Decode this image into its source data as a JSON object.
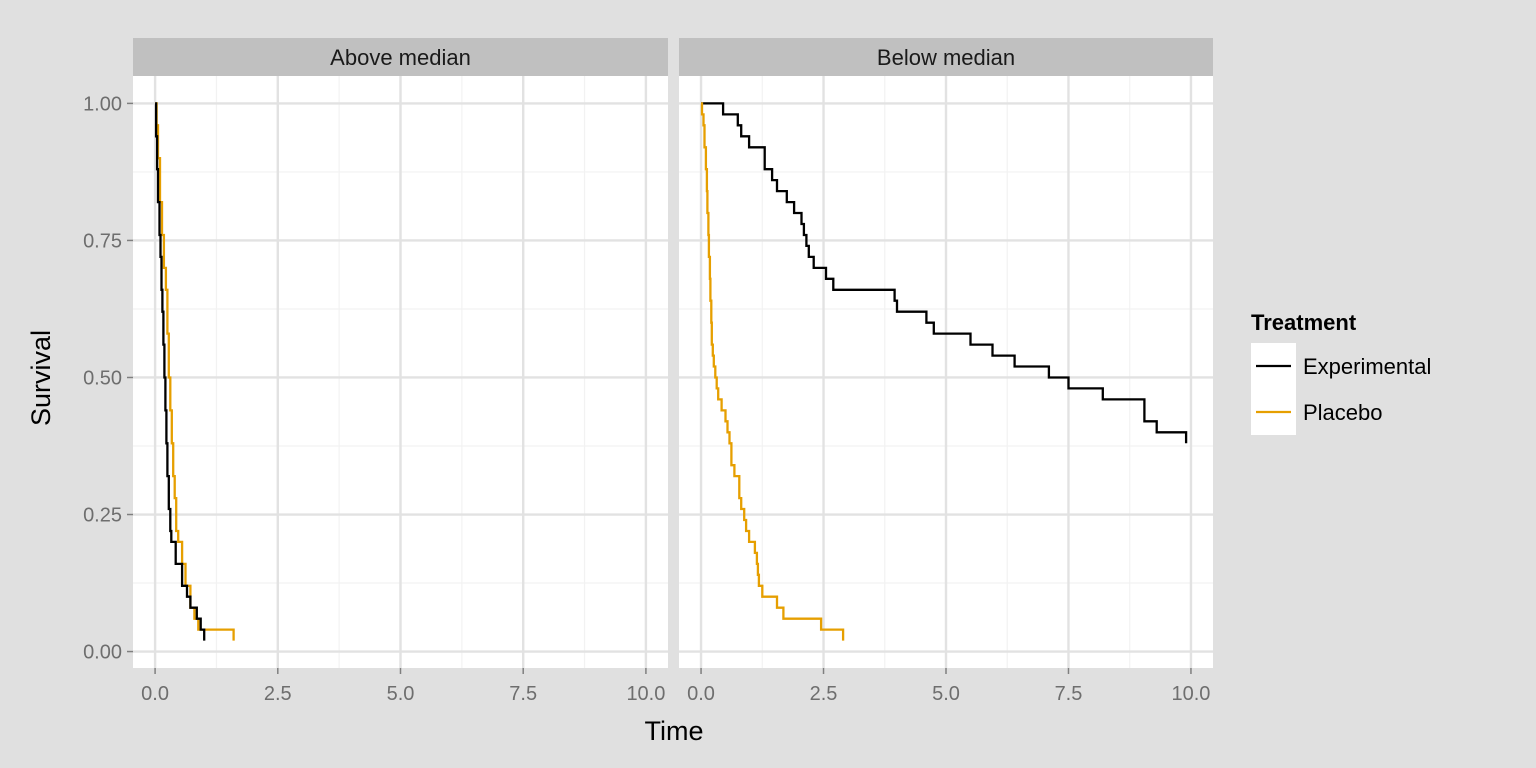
{
  "chart_data": {
    "type": "line",
    "subtype": "step (Kaplan-Meier survival curves), faceted",
    "xlabel": "Time",
    "ylabel": "Survival",
    "xlim": [
      -0.45,
      10.45
    ],
    "ylim": [
      -0.03,
      1.05
    ],
    "x_ticks": [
      0,
      2.5,
      5,
      7.5,
      10
    ],
    "x_tick_labels": [
      "0.0",
      "2.5",
      "5.0",
      "7.5",
      "10.0"
    ],
    "y_ticks": [
      0,
      0.25,
      0.5,
      0.75,
      1
    ],
    "y_tick_labels": [
      "0.00",
      "0.25",
      "0.50",
      "0.75",
      "1.00"
    ],
    "grid": true,
    "legend": {
      "title": "Treatment",
      "position": "right",
      "entries": [
        {
          "name": "Experimental",
          "color": "#000000"
        },
        {
          "name": "Placebo",
          "color": "#e69f00"
        }
      ]
    },
    "facets": [
      {
        "label": "Above median",
        "series": [
          {
            "name": "Experimental",
            "color": "#000000",
            "points": [
              [
                0,
                1.0
              ],
              [
                0.02,
                0.94
              ],
              [
                0.04,
                0.88
              ],
              [
                0.06,
                0.82
              ],
              [
                0.09,
                0.76
              ],
              [
                0.11,
                0.72
              ],
              [
                0.13,
                0.66
              ],
              [
                0.15,
                0.62
              ],
              [
                0.17,
                0.56
              ],
              [
                0.19,
                0.5
              ],
              [
                0.21,
                0.44
              ],
              [
                0.23,
                0.38
              ],
              [
                0.25,
                0.32
              ],
              [
                0.28,
                0.26
              ],
              [
                0.31,
                0.22
              ],
              [
                0.33,
                0.2
              ],
              [
                0.42,
                0.16
              ],
              [
                0.55,
                0.12
              ],
              [
                0.65,
                0.1
              ],
              [
                0.72,
                0.08
              ],
              [
                0.85,
                0.06
              ],
              [
                0.93,
                0.04
              ],
              [
                1.0,
                0.02
              ]
            ]
          },
          {
            "name": "Placebo",
            "color": "#e69f00",
            "points": [
              [
                0,
                1.0
              ],
              [
                0.03,
                0.96
              ],
              [
                0.06,
                0.9
              ],
              [
                0.1,
                0.82
              ],
              [
                0.14,
                0.76
              ],
              [
                0.18,
                0.7
              ],
              [
                0.22,
                0.66
              ],
              [
                0.25,
                0.58
              ],
              [
                0.28,
                0.5
              ],
              [
                0.31,
                0.44
              ],
              [
                0.34,
                0.38
              ],
              [
                0.37,
                0.32
              ],
              [
                0.4,
                0.28
              ],
              [
                0.43,
                0.22
              ],
              [
                0.47,
                0.2
              ],
              [
                0.55,
                0.16
              ],
              [
                0.62,
                0.12
              ],
              [
                0.72,
                0.08
              ],
              [
                0.8,
                0.06
              ],
              [
                0.88,
                0.04
              ],
              [
                1.6,
                0.02
              ]
            ]
          }
        ]
      },
      {
        "label": "Below median",
        "series": [
          {
            "name": "Experimental",
            "color": "#000000",
            "points": [
              [
                0,
                1.0
              ],
              [
                0.45,
                0.98
              ],
              [
                0.75,
                0.96
              ],
              [
                0.82,
                0.94
              ],
              [
                0.98,
                0.92
              ],
              [
                1.3,
                0.88
              ],
              [
                1.45,
                0.86
              ],
              [
                1.55,
                0.84
              ],
              [
                1.75,
                0.82
              ],
              [
                1.9,
                0.8
              ],
              [
                2.05,
                0.78
              ],
              [
                2.1,
                0.76
              ],
              [
                2.15,
                0.74
              ],
              [
                2.2,
                0.72
              ],
              [
                2.3,
                0.7
              ],
              [
                2.55,
                0.68
              ],
              [
                2.7,
                0.66
              ],
              [
                3.95,
                0.64
              ],
              [
                4.0,
                0.62
              ],
              [
                4.6,
                0.6
              ],
              [
                4.75,
                0.58
              ],
              [
                5.5,
                0.56
              ],
              [
                5.95,
                0.54
              ],
              [
                6.4,
                0.52
              ],
              [
                7.1,
                0.5
              ],
              [
                7.5,
                0.48
              ],
              [
                8.2,
                0.46
              ],
              [
                9.05,
                0.42
              ],
              [
                9.3,
                0.4
              ],
              [
                9.9,
                0.38
              ]
            ]
          },
          {
            "name": "Placebo",
            "color": "#e69f00",
            "points": [
              [
                0,
                1.0
              ],
              [
                0.02,
                0.98
              ],
              [
                0.05,
                0.96
              ],
              [
                0.07,
                0.92
              ],
              [
                0.1,
                0.88
              ],
              [
                0.12,
                0.84
              ],
              [
                0.13,
                0.8
              ],
              [
                0.15,
                0.76
              ],
              [
                0.16,
                0.72
              ],
              [
                0.18,
                0.68
              ],
              [
                0.19,
                0.64
              ],
              [
                0.21,
                0.6
              ],
              [
                0.22,
                0.56
              ],
              [
                0.24,
                0.54
              ],
              [
                0.26,
                0.52
              ],
              [
                0.29,
                0.5
              ],
              [
                0.32,
                0.48
              ],
              [
                0.35,
                0.46
              ],
              [
                0.42,
                0.44
              ],
              [
                0.5,
                0.42
              ],
              [
                0.54,
                0.4
              ],
              [
                0.58,
                0.38
              ],
              [
                0.62,
                0.34
              ],
              [
                0.68,
                0.32
              ],
              [
                0.78,
                0.28
              ],
              [
                0.82,
                0.26
              ],
              [
                0.88,
                0.24
              ],
              [
                0.92,
                0.22
              ],
              [
                0.98,
                0.2
              ],
              [
                1.1,
                0.18
              ],
              [
                1.14,
                0.16
              ],
              [
                1.16,
                0.14
              ],
              [
                1.18,
                0.12
              ],
              [
                1.25,
                0.1
              ],
              [
                1.55,
                0.08
              ],
              [
                1.68,
                0.06
              ],
              [
                2.45,
                0.04
              ],
              [
                2.9,
                0.02
              ]
            ]
          }
        ]
      }
    ]
  }
}
